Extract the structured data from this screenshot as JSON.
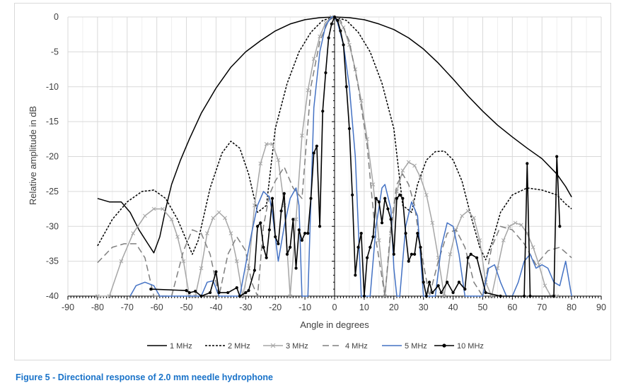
{
  "caption": "Figure 5 - Directional response of 2.0 mm needle hydrophone",
  "chart_data": {
    "type": "line",
    "xlabel": "Angle in degrees",
    "ylabel": "Relative amplitude in dB",
    "xlim": [
      -90,
      90
    ],
    "ylim": [
      -40,
      0
    ],
    "xticks": [
      "-90",
      "-80",
      "-70",
      "-60",
      "-50",
      "-40",
      "-30",
      "-20",
      "-10",
      "0",
      "10",
      "20",
      "30",
      "40",
      "50",
      "60",
      "70",
      "80",
      "90"
    ],
    "yticks": [
      "0",
      "-5",
      "-10",
      "-15",
      "-20",
      "-25",
      "-30",
      "-35",
      "-40"
    ],
    "grid": true,
    "legend_position": "bottom",
    "series": [
      {
        "name": "1 MHz",
        "color": "#000000",
        "style": "solid",
        "marker": "none",
        "x": [
          -80,
          -76,
          -72,
          -69,
          -66,
          -63,
          -61,
          -59,
          -57,
          -55,
          -52,
          -49,
          -45,
          -40,
          -35,
          -30,
          -25,
          -20,
          -15,
          -10,
          -5,
          0,
          5,
          10,
          15,
          20,
          25,
          30,
          35,
          40,
          45,
          50,
          55,
          60,
          65,
          70,
          75,
          78,
          80
        ],
        "y": [
          -26,
          -26.5,
          -26.5,
          -28,
          -30.5,
          -32.5,
          -33.8,
          -31.5,
          -27.5,
          -24,
          -20.5,
          -17.5,
          -13.8,
          -10.2,
          -7.2,
          -5,
          -3.4,
          -2,
          -1,
          -0.4,
          -0.1,
          0,
          -0.1,
          -0.4,
          -1,
          -1.8,
          -3,
          -4.6,
          -6.6,
          -8.9,
          -11.3,
          -13.5,
          -15.5,
          -17.2,
          -18.8,
          -20.3,
          -22.5,
          -24.3,
          -25.8
        ]
      },
      {
        "name": "2 MHz",
        "color": "#000000",
        "style": "dashed-fine",
        "marker": "none",
        "x": [
          -80,
          -75,
          -70,
          -65,
          -61,
          -57,
          -53,
          -50,
          -48,
          -46,
          -42,
          -38,
          -35,
          -32,
          -29,
          -26,
          -23,
          -20,
          -16,
          -12,
          -8,
          -4,
          0,
          4,
          8,
          12,
          16,
          20,
          23,
          26,
          28,
          31,
          34,
          37,
          40,
          43,
          46,
          49,
          51,
          53,
          56,
          60,
          65,
          70,
          75,
          78,
          80
        ],
        "y": [
          -32.8,
          -29,
          -26.5,
          -25,
          -24.8,
          -26,
          -29,
          -32,
          -34,
          -32,
          -24.5,
          -19.5,
          -17.8,
          -18.8,
          -22.5,
          -28,
          -27,
          -16,
          -9.5,
          -5,
          -2.2,
          -0.5,
          0,
          -0.5,
          -2.2,
          -5,
          -9.5,
          -16,
          -27,
          -28,
          -24,
          -20.5,
          -19.3,
          -19.2,
          -20.5,
          -23.5,
          -28.5,
          -33,
          -34.8,
          -32.5,
          -28,
          -25.5,
          -24.5,
          -24.8,
          -25.5,
          -26.8,
          -27.5
        ]
      },
      {
        "name": "3 MHz",
        "color": "#a6a6a6",
        "style": "solid",
        "marker": "x",
        "x": [
          -80,
          -76,
          -72,
          -68,
          -64,
          -61,
          -58,
          -55,
          -53,
          -51,
          -49,
          -47,
          -45,
          -43,
          -41,
          -39,
          -37,
          -35,
          -33,
          -31,
          -29,
          -27,
          -25,
          -23,
          -21,
          -19,
          -17,
          -15,
          -13,
          -11,
          -9,
          -7,
          -5,
          -3,
          -1,
          1,
          3,
          5,
          7,
          9,
          11,
          13,
          15,
          17,
          19,
          21,
          23,
          25,
          27,
          29,
          31,
          33,
          35,
          37,
          39,
          41,
          43,
          45,
          47,
          49,
          51,
          53,
          55,
          57,
          59,
          61,
          63,
          65,
          67,
          69,
          71,
          73,
          75
        ],
        "y": [
          -40,
          -40,
          -35,
          -31,
          -28.5,
          -27.5,
          -27.5,
          -29,
          -31.5,
          -35,
          -40,
          -40,
          -36,
          -31,
          -28.8,
          -28,
          -28.8,
          -31,
          -35,
          -40,
          -36,
          -27,
          -21,
          -18.2,
          -18.2,
          -20.5,
          -27,
          -40,
          -29,
          -17,
          -10.5,
          -6,
          -2.8,
          -0.8,
          0,
          -0.3,
          -1.5,
          -4,
          -7.5,
          -12,
          -17.5,
          -24,
          -32,
          -40,
          -31,
          -25,
          -22,
          -20.8,
          -21.3,
          -23,
          -25.5,
          -29.5,
          -34.5,
          -40,
          -34,
          -30.5,
          -28.5,
          -27.8,
          -28.8,
          -32,
          -38,
          -40,
          -36,
          -32,
          -30,
          -29.5,
          -29.8,
          -31,
          -33,
          -35.5,
          -38.5,
          -40,
          -40
        ]
      },
      {
        "name": "4 MHz",
        "color": "#7f7f7f",
        "style": "long-dash",
        "marker": "none",
        "x": [
          -80,
          -75,
          -71,
          -67,
          -64,
          -61,
          -59,
          -57,
          -55,
          -51,
          -48,
          -45,
          -42,
          -39,
          -36,
          -33,
          -30,
          -28,
          -26,
          -24,
          -22,
          -20,
          -17,
          -14,
          -11,
          -8,
          -5,
          -2,
          0,
          2,
          5,
          8,
          11,
          14,
          17,
          19,
          21,
          23,
          25,
          27,
          29,
          32,
          35,
          38,
          41,
          44,
          47,
          50,
          53,
          56,
          60,
          64,
          68,
          72,
          76,
          80
        ],
        "y": [
          -35.2,
          -33,
          -32.5,
          -32.5,
          -34.5,
          -40,
          -40,
          -40,
          -40,
          -33.5,
          -30.5,
          -31,
          -34,
          -40,
          -34,
          -31.5,
          -33.5,
          -38,
          -40,
          -30,
          -25.5,
          -23.5,
          -21.5,
          -24.5,
          -26,
          -10,
          -3.5,
          -0.5,
          0,
          -0.5,
          -3.5,
          -10,
          -18.5,
          -32,
          -40,
          -30,
          -24,
          -22.5,
          -24,
          -27,
          -33,
          -40,
          -35,
          -31,
          -30.5,
          -33,
          -38,
          -40,
          -33,
          -30,
          -30.5,
          -32.5,
          -35.5,
          -33.5,
          -33,
          -34.5
        ]
      },
      {
        "name": "5 MHz",
        "color": "#4472c4",
        "style": "solid",
        "marker": "none",
        "x": [
          -69,
          -67,
          -64,
          -61,
          -59,
          -45,
          -43,
          -41,
          -39,
          -37,
          -34,
          -32,
          -30,
          -28,
          -26,
          -24,
          -22,
          -21,
          -19,
          -17,
          -15,
          -13,
          -12,
          -11,
          -10,
          -9.5,
          -9,
          -7,
          -5,
          -3,
          -1,
          0,
          1,
          3,
          5,
          7,
          8,
          9,
          10,
          12,
          14,
          16,
          17,
          19,
          20,
          21,
          22,
          24,
          26,
          28,
          30,
          32,
          34,
          36,
          38,
          40,
          42,
          44,
          46,
          48,
          50,
          52,
          54,
          56,
          58,
          60,
          62,
          64,
          66,
          68,
          70,
          72,
          74,
          76,
          78,
          80
        ],
        "y": [
          -40,
          -38.5,
          -38,
          -38.5,
          -40,
          -40,
          -38,
          -37.8,
          -40,
          -40,
          -40,
          -40,
          -35.5,
          -31,
          -27,
          -25,
          -25.8,
          -28,
          -35,
          -30,
          -26,
          -24.5,
          -27,
          -40,
          -40,
          -40,
          -40,
          -13,
          -5,
          -1.2,
          0,
          0,
          -0.8,
          -4,
          -10,
          -20,
          -30,
          -40,
          -40,
          -40,
          -30,
          -24.5,
          -24,
          -27.5,
          -36,
          -40,
          -40,
          -30,
          -26.5,
          -28.5,
          -40,
          -40,
          -40,
          -33,
          -29.5,
          -30,
          -34,
          -40,
          -40,
          -40,
          -40,
          -36,
          -35.5,
          -38,
          -40,
          -40,
          -38,
          -35,
          -34,
          -36,
          -35.5,
          -36,
          -38,
          -38.5,
          -35,
          -40
        ]
      },
      {
        "name": "10 MHz",
        "color": "#000000",
        "style": "solid",
        "marker": "dot",
        "x": [
          -62,
          -50,
          -49,
          -47,
          -45,
          -42,
          -40,
          -39,
          -36,
          -33,
          -32,
          -30,
          -29,
          -27,
          -26,
          -25,
          -24,
          -23,
          -22,
          -21,
          -20,
          -19,
          -18,
          -17,
          -16,
          -15,
          -14,
          -13,
          -12,
          -11,
          -10,
          -9,
          -8,
          -7,
          -6,
          -5,
          -4,
          -3,
          -2,
          -1,
          0,
          1,
          2,
          3,
          4,
          5,
          6,
          7,
          8,
          9,
          10,
          11,
          12,
          13,
          14,
          15,
          16,
          17,
          18,
          19,
          20,
          21,
          22,
          23,
          24,
          25,
          26,
          27,
          28,
          29,
          30,
          31,
          32,
          33,
          35,
          36,
          38,
          40,
          42,
          44,
          45,
          46,
          48,
          51,
          56,
          64,
          65,
          66,
          74,
          75,
          76
        ],
        "y": [
          -39,
          -39.2,
          -39.5,
          -39.3,
          -40,
          -39.5,
          -36.5,
          -39.5,
          -39.5,
          -38.8,
          -40,
          -39.5,
          -39.2,
          -36.3,
          -30,
          -29.5,
          -33,
          -34.5,
          -30.5,
          -26,
          -31.5,
          -32.5,
          -27.8,
          -25.3,
          -34,
          -33,
          -29,
          -36,
          -30.5,
          -32,
          -31,
          -31,
          -26,
          -19.5,
          -18.5,
          -30,
          -13.5,
          -8,
          -3,
          -1,
          0,
          -0.5,
          -2,
          -4,
          -10,
          -16,
          -25.5,
          -37,
          -33,
          -31,
          -40,
          -34.5,
          -33,
          -31.5,
          -26,
          -26.5,
          -29.5,
          -26,
          -27.5,
          -29,
          -34,
          -26,
          -25.5,
          -26,
          -31,
          -35,
          -34,
          -34,
          -31,
          -33,
          -38,
          -40,
          -38,
          -39.5,
          -38.5,
          -39.5,
          -38,
          -39.5,
          -38,
          -39,
          -34.5,
          -34,
          -34.5,
          -39.5,
          -40,
          -40,
          -21,
          -40,
          -40,
          -20,
          -30
        ]
      }
    ]
  },
  "legend": [
    {
      "label": "1 MHz"
    },
    {
      "label": "2 MHz"
    },
    {
      "label": "3 MHz"
    },
    {
      "label": "4 MHz"
    },
    {
      "label": "5 MHz"
    },
    {
      "label": "10 MHz"
    }
  ]
}
